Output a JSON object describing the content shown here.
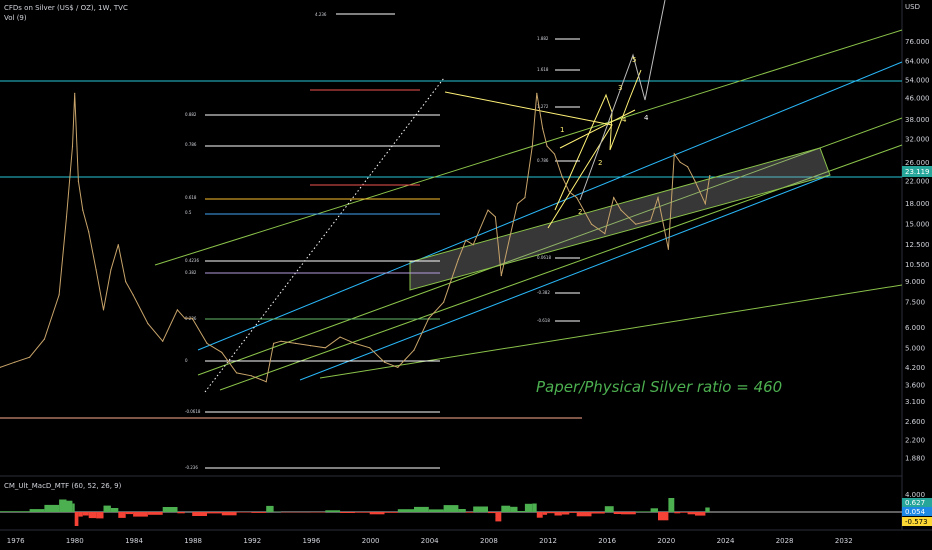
{
  "header": {
    "symbol_line": "CFDs on Silver (US$ / OZ), 1W, TVC",
    "volume_label": "Vol (9)",
    "indicator_label": "CM_Ult_MacD_MTF (60, 52, 26, 9)"
  },
  "annotation": "Paper/Physical Silver ratio = 460",
  "chart_data": {
    "type": "line",
    "title": "",
    "ylabel": "USD",
    "yscale": "log",
    "ylim": [
      1.6,
      110
    ],
    "xlim": [
      1975,
      2036
    ],
    "x_ticks": [
      "1976",
      "1980",
      "1984",
      "1988",
      "1992",
      "1996",
      "2000",
      "2004",
      "2008",
      "2012",
      "2016",
      "2020",
      "2024",
      "2028",
      "2032"
    ],
    "y_ticks": [
      "76.000",
      "64.000",
      "54.000",
      "46.000",
      "38.000",
      "32.000",
      "26.000",
      "22.000",
      "18.000",
      "15.000",
      "12.500",
      "10.500",
      "9.000",
      "7.500",
      "6.000",
      "5.000",
      "4.200",
      "3.600",
      "3.100",
      "2.600",
      "2.200",
      "1.880"
    ],
    "last_price": "23.119",
    "last_price_color": "#26a69a",
    "series": [
      {
        "values_x": [
          1975.0,
          1976.0,
          1977.0,
          1978.0,
          1979.0,
          1979.5,
          1979.9,
          1980.05,
          1980.3,
          1980.6,
          1981.0,
          1981.5,
          1982.0,
          1982.5,
          1983.0,
          1983.5,
          1984.0,
          1985.0,
          1986.0,
          1987.0,
          1987.5,
          1988.0,
          1989.0,
          1990.0,
          1991.0,
          1992.0,
          1993.0,
          1993.5,
          1994.0,
          1995.0,
          1996.0,
          1997.0,
          1998.0,
          1999.0,
          2000.0,
          2001.0,
          2001.9,
          2003.0,
          2004.0,
          2005.0,
          2006.0,
          2006.5,
          2007.0,
          2008.0,
          2008.5,
          2008.9,
          2009.5,
          2010.0,
          2010.5,
          2011.0,
          2011.3,
          2011.7,
          2012.0,
          2012.5,
          2013.0,
          2013.5,
          2014.0,
          2015.0,
          2015.9,
          2016.5,
          2017.0,
          2018.0,
          2019.0,
          2019.5,
          2020.2,
          2020.6,
          2021.0,
          2021.5,
          2022.0,
          2022.7,
          2023.0
        ],
        "values_y": [
          4.2,
          4.4,
          4.6,
          5.4,
          8.0,
          16.0,
          30.0,
          48.0,
          22.0,
          17.0,
          14.0,
          10.0,
          7.0,
          10.0,
          12.5,
          9.0,
          8.0,
          6.2,
          5.3,
          7.0,
          6.5,
          6.5,
          5.2,
          4.8,
          4.0,
          3.9,
          3.7,
          5.2,
          5.3,
          5.2,
          5.1,
          5.0,
          5.5,
          5.2,
          5.0,
          4.4,
          4.2,
          4.9,
          6.5,
          7.5,
          11.0,
          13.0,
          12.5,
          17.0,
          16.0,
          9.5,
          13.5,
          18.0,
          19.0,
          30.0,
          48.0,
          35.0,
          30.0,
          28.0,
          23.0,
          20.0,
          19.0,
          15.0,
          13.8,
          19.0,
          17.0,
          15.0,
          15.5,
          19.0,
          12.0,
          28.0,
          26.0,
          25.0,
          22.0,
          18.0,
          23.1
        ]
      }
    ],
    "legend": "none",
    "grid": false
  }
}
